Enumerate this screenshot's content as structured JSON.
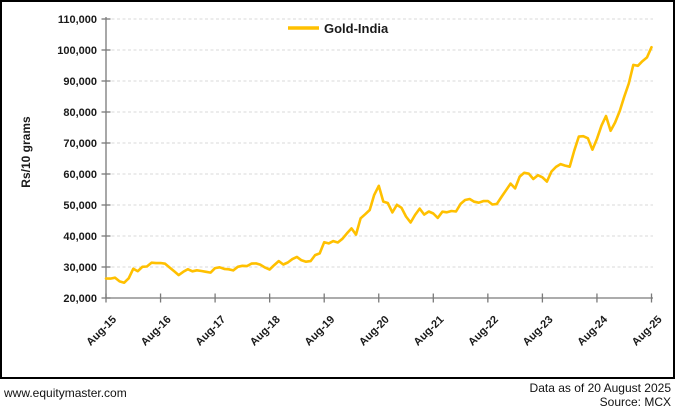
{
  "footer": {
    "website": "www.equitymaster.com",
    "data_as_of": "Data as of 20 August 2025",
    "source": "Source: MCX"
  },
  "chart_data": {
    "type": "line",
    "title": "",
    "ylabel": "Rs/10 grams",
    "xlabel": "",
    "ylim": [
      20000,
      110000
    ],
    "ytick_step": 10000,
    "x_tick_labels": [
      "Aug-15",
      "Aug-16",
      "Aug-17",
      "Aug-18",
      "Aug-19",
      "Aug-20",
      "Aug-21",
      "Aug-22",
      "Aug-23",
      "Aug-24",
      "Aug-25"
    ],
    "frequency": "monthly",
    "start_month": "Aug-2015",
    "end_month": "Aug-2025",
    "grid": {
      "horizontal": true,
      "style": "dashed",
      "color": "#D9D9D9"
    },
    "legend": {
      "position": "top-center"
    },
    "colors": {
      "axis": "#7a7a7a",
      "tick_label": "#1a1a1a",
      "border": "#000000"
    },
    "series": [
      {
        "name": "Gold-India",
        "color": "#FFC000",
        "values": [
          26300,
          26250,
          26550,
          25350,
          24950,
          26350,
          29450,
          28650,
          30050,
          30150,
          31400,
          31250,
          31300,
          31050,
          29850,
          28600,
          27400,
          28450,
          29300,
          28600,
          28950,
          28700,
          28450,
          28200,
          29650,
          29900,
          29400,
          29250,
          28900,
          30050,
          30400,
          30300,
          31100,
          31150,
          30700,
          29800,
          29200,
          30600,
          31900,
          30800,
          31450,
          32550,
          33250,
          32150,
          31700,
          31900,
          33850,
          34400,
          38000,
          37600,
          38350,
          37900,
          39100,
          40850,
          42450,
          40450,
          45700,
          47000,
          48400,
          53250,
          56200,
          51100,
          50650,
          47600,
          50050,
          49100,
          46300,
          44350,
          46800,
          48850,
          46900,
          47900,
          47250,
          45850,
          47850,
          47650,
          48050,
          47900,
          50350,
          51600,
          51950,
          51050,
          50750,
          51250,
          51300,
          50150,
          50350,
          52600,
          54750,
          56900,
          55350,
          59150,
          60400,
          60100,
          58400,
          59600,
          58950,
          57550,
          60800,
          62300,
          63200,
          62700,
          62350,
          67500,
          72050,
          72200,
          71500,
          67850,
          71400,
          75600,
          78700,
          73950,
          76600,
          80300,
          84900,
          89200,
          95200,
          94900,
          96400,
          97600,
          100900
        ]
      }
    ]
  }
}
